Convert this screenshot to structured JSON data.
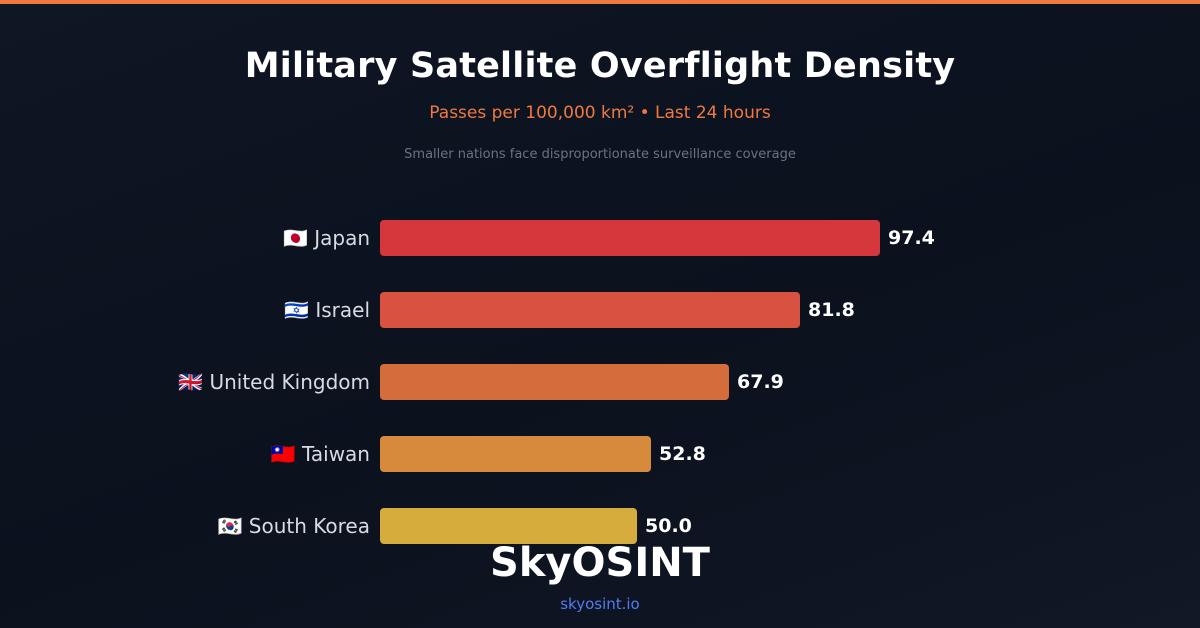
{
  "header": {
    "title": "Military Satellite Overflight Density",
    "subtitle": "Passes per 100,000 km² • Last 24 hours",
    "note": "Smaller nations face disproportionate surveillance coverage"
  },
  "brand": {
    "name": "SkyOSINT",
    "url": "skyosint.io"
  },
  "colors": {
    "accent": "#f0793f",
    "subtitle": "#f0793f",
    "url": "#4f7cf0"
  },
  "chart_data": {
    "type": "bar",
    "orientation": "horizontal",
    "categories": [
      "Japan",
      "Israel",
      "United Kingdom",
      "Taiwan",
      "South Korea"
    ],
    "category_labels": [
      "🇯🇵 Japan",
      "🇮🇱 Israel",
      "🇬🇧 United Kingdom",
      "🇹🇼 Taiwan",
      "🇰🇷 South Korea"
    ],
    "values": [
      97.4,
      81.8,
      67.9,
      52.8,
      50.0
    ],
    "value_labels": [
      "97.4",
      "81.8",
      "67.9",
      "52.8",
      "50.0"
    ],
    "bar_colors": [
      "#d6373c",
      "#d9523f",
      "#d56c3c",
      "#d88a3c",
      "#d6ad3c"
    ],
    "xlim": [
      0,
      97.4
    ],
    "grid": false
  }
}
